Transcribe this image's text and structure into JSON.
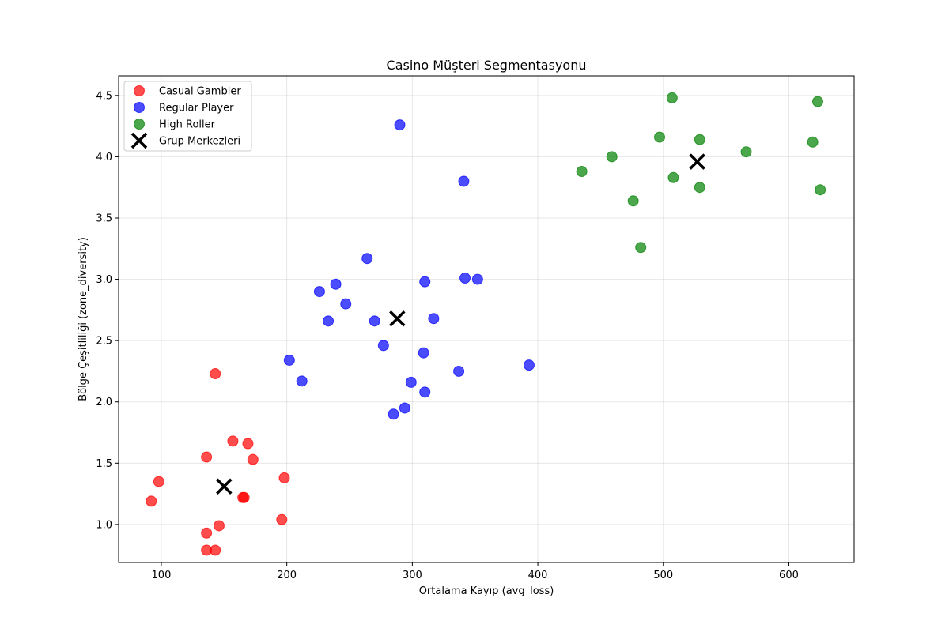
{
  "chart_data": {
    "type": "scatter",
    "title": "Casino Müşteri Segmentasyonu",
    "xlabel": "Ortalama Kayıp (avg_loss)",
    "ylabel": "Bölge Çeşitliliği (zone_diversity)",
    "xlim": [
      66,
      652
    ],
    "ylim": [
      0.69,
      4.66
    ],
    "xticks": [
      100,
      200,
      300,
      400,
      500,
      600
    ],
    "yticks": [
      1.0,
      1.5,
      2.0,
      2.5,
      3.0,
      3.5,
      4.0,
      4.5
    ],
    "xtick_labels": [
      "100",
      "200",
      "300",
      "400",
      "500",
      "600"
    ],
    "ytick_labels": [
      "1.0",
      "1.5",
      "2.0",
      "2.5",
      "3.0",
      "3.5",
      "4.0",
      "4.5"
    ],
    "grid": true,
    "legend_position": "top-left",
    "series": [
      {
        "name": "Casual Gambler",
        "color": "#ff0000",
        "marker": "circle",
        "points": [
          [
            92,
            1.19
          ],
          [
            98,
            1.35
          ],
          [
            136,
            0.93
          ],
          [
            136,
            0.79
          ],
          [
            136,
            1.55
          ],
          [
            143,
            2.23
          ],
          [
            143,
            0.79
          ],
          [
            146,
            0.99
          ],
          [
            157,
            1.68
          ],
          [
            165,
            1.22
          ],
          [
            166,
            1.22
          ],
          [
            169,
            1.66
          ],
          [
            173,
            1.53
          ],
          [
            196,
            1.04
          ],
          [
            198,
            1.38
          ]
        ]
      },
      {
        "name": "Regular Player",
        "color": "#0000ff",
        "marker": "circle",
        "points": [
          [
            290,
            4.26
          ],
          [
            341,
            3.8
          ],
          [
            264,
            3.17
          ],
          [
            226,
            2.9
          ],
          [
            239,
            2.96
          ],
          [
            247,
            2.8
          ],
          [
            233,
            2.66
          ],
          [
            270,
            2.66
          ],
          [
            277,
            2.46
          ],
          [
            202,
            2.34
          ],
          [
            212,
            2.17
          ],
          [
            310,
            2.98
          ],
          [
            342,
            3.01
          ],
          [
            352,
            3.0
          ],
          [
            317,
            2.68
          ],
          [
            309,
            2.4
          ],
          [
            299,
            2.16
          ],
          [
            310,
            2.08
          ],
          [
            337,
            2.25
          ],
          [
            393,
            2.3
          ],
          [
            285,
            1.9
          ],
          [
            294,
            1.95
          ]
        ]
      },
      {
        "name": "High Roller",
        "color": "#008000",
        "marker": "circle",
        "points": [
          [
            507,
            4.48
          ],
          [
            623,
            4.45
          ],
          [
            497,
            4.16
          ],
          [
            529,
            4.14
          ],
          [
            566,
            4.04
          ],
          [
            619,
            4.12
          ],
          [
            459,
            4.0
          ],
          [
            435,
            3.88
          ],
          [
            508,
            3.83
          ],
          [
            529,
            3.75
          ],
          [
            625,
            3.73
          ],
          [
            476,
            3.64
          ],
          [
            482,
            3.26
          ]
        ]
      },
      {
        "name": "Grup Merkezleri",
        "color": "#000000",
        "marker": "x",
        "points": [
          [
            150,
            1.31
          ],
          [
            288,
            2.68
          ],
          [
            527,
            3.96
          ]
        ]
      }
    ]
  }
}
